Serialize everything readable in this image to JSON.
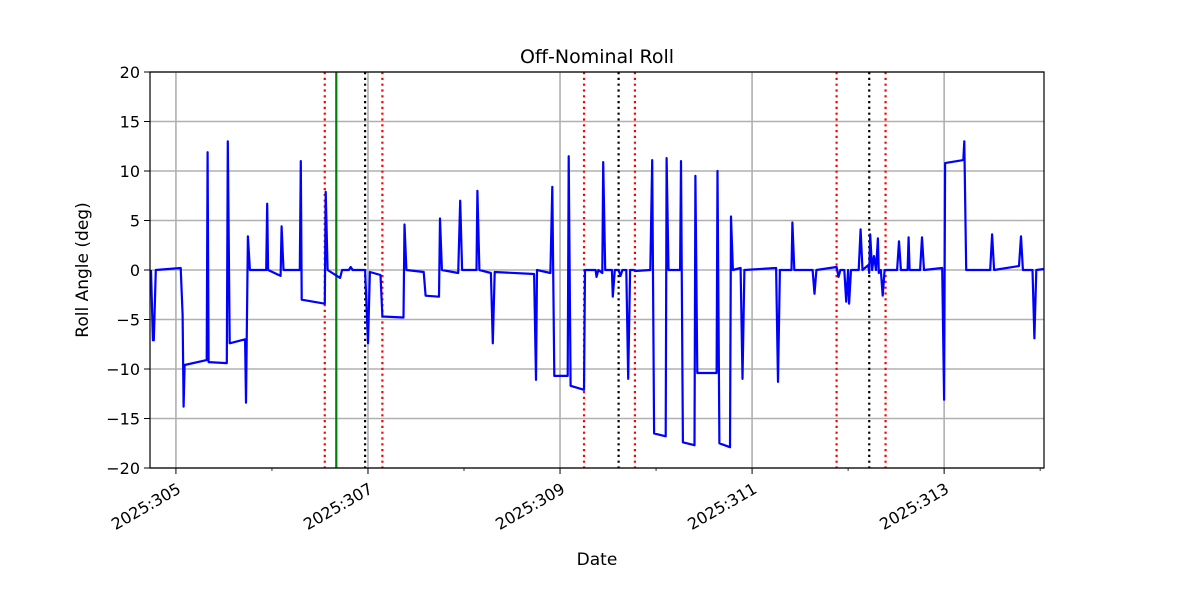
{
  "chart_data": {
    "type": "line",
    "title": "Off-Nominal Roll",
    "xlabel": "Date",
    "ylabel": "Roll Angle (deg)",
    "xlim": [
      304.73,
      314.04
    ],
    "ylim": [
      -20,
      20
    ],
    "grid": true,
    "x_ticks": [
      {
        "value": 305,
        "label": "2025:305"
      },
      {
        "value": 307,
        "label": "2025:307"
      },
      {
        "value": 309,
        "label": "2025:309"
      },
      {
        "value": 311,
        "label": "2025:311"
      },
      {
        "value": 313,
        "label": "2025:313"
      }
    ],
    "x_minor_ticks": [
      306,
      308,
      310,
      312,
      314
    ],
    "y_ticks": [
      {
        "value": 20,
        "label": "20"
      },
      {
        "value": 15,
        "label": "15"
      },
      {
        "value": 10,
        "label": "10"
      },
      {
        "value": 5,
        "label": "5"
      },
      {
        "value": 0,
        "label": "0"
      },
      {
        "value": -5,
        "label": "−5"
      },
      {
        "value": -10,
        "label": "−10"
      },
      {
        "value": -15,
        "label": "−15"
      },
      {
        "value": -20,
        "label": "−20"
      }
    ],
    "vertical_lines": [
      {
        "x": 306.55,
        "color": "#ff0000",
        "style": "dotted"
      },
      {
        "x": 306.67,
        "color": "#008000",
        "style": "solid"
      },
      {
        "x": 306.97,
        "color": "#000000",
        "style": "dotted"
      },
      {
        "x": 307.15,
        "color": "#ff0000",
        "style": "dotted"
      },
      {
        "x": 309.25,
        "color": "#ff0000",
        "style": "dotted"
      },
      {
        "x": 309.61,
        "color": "#000000",
        "style": "dotted"
      },
      {
        "x": 309.78,
        "color": "#ff0000",
        "style": "dotted"
      },
      {
        "x": 311.88,
        "color": "#ff0000",
        "style": "dotted"
      },
      {
        "x": 312.22,
        "color": "#000000",
        "style": "dotted"
      },
      {
        "x": 312.39,
        "color": "#ff0000",
        "style": "dotted"
      }
    ],
    "series": [
      {
        "name": "roll",
        "color": "#0000ff",
        "points": [
          [
            304.74,
            0
          ],
          [
            304.76,
            -7.1
          ],
          [
            304.77,
            -7.1
          ],
          [
            304.79,
            0
          ],
          [
            305.05,
            0.2
          ],
          [
            305.07,
            -4.5
          ],
          [
            305.08,
            -13.8
          ],
          [
            305.09,
            -9.6
          ],
          [
            305.32,
            -9.1
          ],
          [
            305.33,
            11.9
          ],
          [
            305.34,
            -9.3
          ],
          [
            305.53,
            -9.4
          ],
          [
            305.54,
            13.0
          ],
          [
            305.56,
            -7.4
          ],
          [
            305.72,
            -7.0
          ],
          [
            305.73,
            -13.4
          ],
          [
            305.75,
            3.4
          ],
          [
            305.77,
            0
          ],
          [
            305.94,
            0
          ],
          [
            305.95,
            6.7
          ],
          [
            305.96,
            0
          ],
          [
            306.09,
            -0.6
          ],
          [
            306.1,
            4.4
          ],
          [
            306.12,
            0
          ],
          [
            306.29,
            0
          ],
          [
            306.3,
            11.0
          ],
          [
            306.31,
            -3.0
          ],
          [
            306.55,
            -3.4
          ],
          [
            306.56,
            7.9
          ],
          [
            306.58,
            0
          ],
          [
            306.71,
            -0.8
          ],
          [
            306.73,
            0
          ],
          [
            306.8,
            0
          ],
          [
            306.82,
            0.3
          ],
          [
            306.84,
            0
          ],
          [
            306.97,
            0
          ],
          [
            307.0,
            -7.4
          ],
          [
            307.02,
            -0.2
          ],
          [
            307.13,
            -0.5
          ],
          [
            307.15,
            -4.7
          ],
          [
            307.37,
            -4.8
          ],
          [
            307.38,
            4.6
          ],
          [
            307.4,
            0
          ],
          [
            307.58,
            -0.2
          ],
          [
            307.6,
            -2.6
          ],
          [
            307.74,
            -2.7
          ],
          [
            307.75,
            5.2
          ],
          [
            307.77,
            0
          ],
          [
            307.94,
            -0.3
          ],
          [
            307.96,
            7.0
          ],
          [
            307.98,
            0
          ],
          [
            308.13,
            0
          ],
          [
            308.14,
            8.0
          ],
          [
            308.16,
            0
          ],
          [
            308.28,
            -0.3
          ],
          [
            308.3,
            -7.4
          ],
          [
            308.32,
            -0.2
          ],
          [
            308.73,
            -0.4
          ],
          [
            308.75,
            -11.1
          ],
          [
            308.76,
            0
          ],
          [
            308.9,
            -0.3
          ],
          [
            308.92,
            8.4
          ],
          [
            308.94,
            -10.7
          ],
          [
            309.08,
            -10.7
          ],
          [
            309.09,
            11.5
          ],
          [
            309.11,
            -11.7
          ],
          [
            309.25,
            -12.1
          ],
          [
            309.26,
            0
          ],
          [
            309.37,
            0
          ],
          [
            309.38,
            -0.7
          ],
          [
            309.4,
            0
          ],
          [
            309.44,
            -0.3
          ],
          [
            309.45,
            10.9
          ],
          [
            309.47,
            0
          ],
          [
            309.54,
            0
          ],
          [
            309.55,
            -2.7
          ],
          [
            309.57,
            0
          ],
          [
            309.61,
            0
          ],
          [
            309.63,
            -0.6
          ],
          [
            309.65,
            0
          ],
          [
            309.69,
            0
          ],
          [
            309.71,
            -11.0
          ],
          [
            309.73,
            0
          ],
          [
            309.77,
            0
          ],
          [
            309.78,
            -0.1
          ],
          [
            309.94,
            0
          ],
          [
            309.96,
            11.1
          ],
          [
            309.98,
            -16.5
          ],
          [
            310.1,
            -16.8
          ],
          [
            310.11,
            11.3
          ],
          [
            310.13,
            0
          ],
          [
            310.25,
            0
          ],
          [
            310.26,
            11.0
          ],
          [
            310.28,
            -17.4
          ],
          [
            310.4,
            -17.7
          ],
          [
            310.41,
            9.5
          ],
          [
            310.43,
            -10.4
          ],
          [
            310.63,
            -10.4
          ],
          [
            310.64,
            10.0
          ],
          [
            310.66,
            -17.5
          ],
          [
            310.77,
            -17.9
          ],
          [
            310.78,
            5.4
          ],
          [
            310.8,
            0
          ],
          [
            310.88,
            0.2
          ],
          [
            310.9,
            -11.0
          ],
          [
            310.92,
            0
          ],
          [
            311.25,
            0.2
          ],
          [
            311.27,
            -11.3
          ],
          [
            311.29,
            0
          ],
          [
            311.41,
            0
          ],
          [
            311.42,
            4.8
          ],
          [
            311.44,
            0
          ],
          [
            311.63,
            0
          ],
          [
            311.65,
            -2.4
          ],
          [
            311.67,
            0
          ],
          [
            311.88,
            0.3
          ],
          [
            311.9,
            -0.7
          ],
          [
            311.92,
            0
          ],
          [
            311.96,
            0
          ],
          [
            311.98,
            -3.2
          ],
          [
            312.0,
            0
          ],
          [
            312.01,
            -3.4
          ],
          [
            312.03,
            0
          ],
          [
            312.11,
            0
          ],
          [
            312.13,
            4.1
          ],
          [
            312.15,
            0
          ],
          [
            312.21,
            0.5
          ],
          [
            312.22,
            -0.3
          ],
          [
            312.23,
            3.6
          ],
          [
            312.25,
            0
          ],
          [
            312.27,
            1.4
          ],
          [
            312.29,
            0
          ],
          [
            312.31,
            3.2
          ],
          [
            312.32,
            -0.3
          ],
          [
            312.34,
            0
          ],
          [
            312.36,
            -2.6
          ],
          [
            312.38,
            0
          ],
          [
            312.51,
            0
          ],
          [
            312.53,
            2.9
          ],
          [
            312.55,
            0
          ],
          [
            312.62,
            0
          ],
          [
            312.63,
            3.3
          ],
          [
            312.64,
            0
          ],
          [
            312.75,
            0
          ],
          [
            312.77,
            3.3
          ],
          [
            312.79,
            0
          ],
          [
            312.98,
            0.2
          ],
          [
            313.0,
            -13.1
          ],
          [
            313.01,
            10.8
          ],
          [
            313.2,
            11.1
          ],
          [
            313.21,
            13.0
          ],
          [
            313.23,
            0
          ],
          [
            313.48,
            0
          ],
          [
            313.5,
            3.6
          ],
          [
            313.52,
            0
          ],
          [
            313.78,
            0.4
          ],
          [
            313.8,
            3.4
          ],
          [
            313.82,
            0
          ],
          [
            313.92,
            0
          ],
          [
            313.94,
            -6.9
          ],
          [
            313.96,
            0
          ],
          [
            314.04,
            0.1
          ]
        ]
      }
    ]
  }
}
